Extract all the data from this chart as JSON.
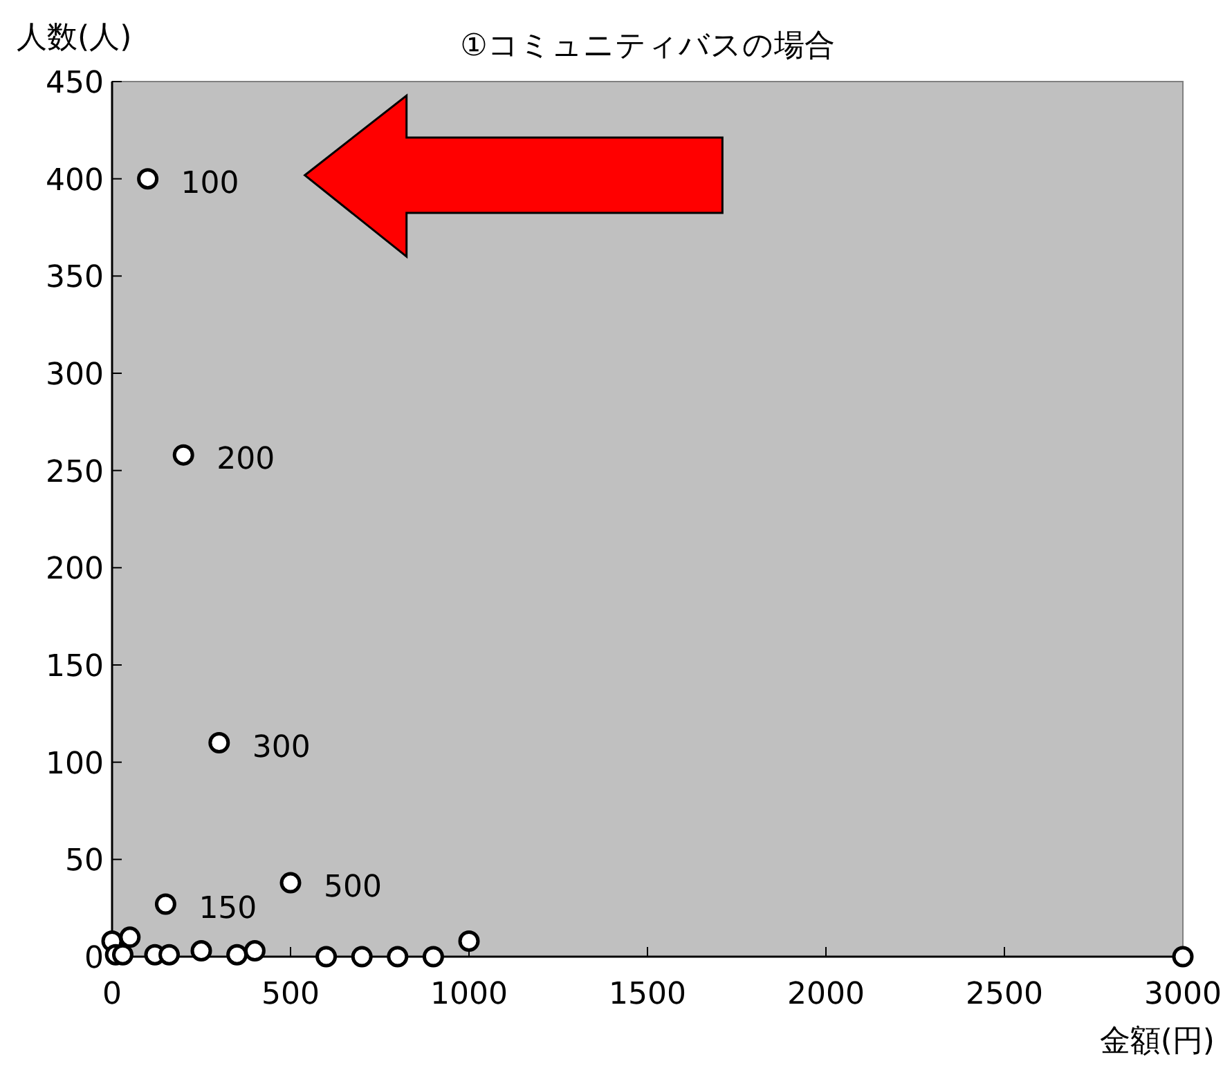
{
  "chart_data": {
    "type": "scatter",
    "title": "①コミュニティバスの場合",
    "xlabel": "金額(円)",
    "ylabel": "人数(人)",
    "x": [
      0,
      50,
      10,
      30,
      120,
      160,
      250,
      350,
      400,
      600,
      700,
      800,
      900,
      1000,
      150,
      500,
      100,
      200,
      300,
      3000
    ],
    "values": [
      8,
      10,
      1,
      1,
      1,
      1,
      3,
      1,
      3,
      0,
      0,
      0,
      0,
      8,
      27,
      38,
      400,
      258,
      110,
      0
    ],
    "color": "#ffffff",
    "marker": "circle",
    "xlim": [
      0,
      3000
    ],
    "xticks": [
      0,
      500,
      1000,
      1500,
      2000,
      2500,
      3000
    ],
    "ylim": [
      0,
      450
    ],
    "yticks": [
      0,
      50,
      100,
      150,
      200,
      250,
      300,
      350,
      400,
      450
    ],
    "grid": false,
    "annotations": [
      {
        "text": "100",
        "x": 100,
        "y": 400
      },
      {
        "text": "200",
        "x": 200,
        "y": 258
      },
      {
        "text": "300",
        "x": 300,
        "y": 110
      },
      {
        "text": "150",
        "x": 150,
        "y": 27
      },
      {
        "text": "500",
        "x": 500,
        "y": 38
      }
    ]
  }
}
